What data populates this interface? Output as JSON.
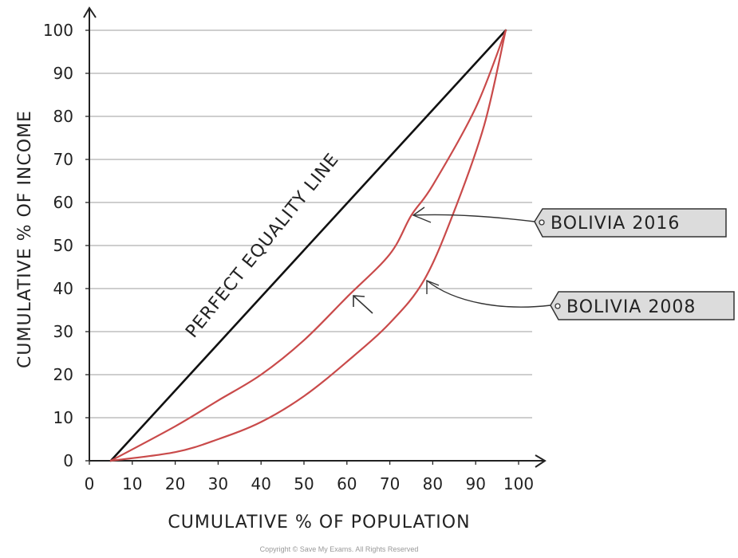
{
  "chart_data": {
    "type": "line",
    "xlabel": "CUMULATIVE % OF POPULATION",
    "ylabel": "CUMULATIVE % OF INCOME",
    "xlim": [
      0,
      100
    ],
    "ylim": [
      0,
      100
    ],
    "x_ticks": [
      0,
      10,
      20,
      30,
      40,
      50,
      60,
      70,
      80,
      90,
      100
    ],
    "y_ticks": [
      0,
      10,
      20,
      30,
      40,
      50,
      60,
      70,
      80,
      90,
      100
    ],
    "grid": "horizontal",
    "series": [
      {
        "name": "PERFECT EQUALITY LINE",
        "color": "#111111",
        "points": [
          [
            5,
            0
          ],
          [
            97,
            100
          ]
        ]
      },
      {
        "name": "BOLIVIA 2016",
        "color": "#c94a4a",
        "points": [
          [
            5,
            0
          ],
          [
            20,
            8
          ],
          [
            30,
            14
          ],
          [
            40,
            20
          ],
          [
            50,
            28
          ],
          [
            60,
            38
          ],
          [
            70,
            48
          ],
          [
            75,
            57
          ],
          [
            80,
            64
          ],
          [
            90,
            82
          ],
          [
            97,
            100
          ]
        ]
      },
      {
        "name": "BOLIVIA 2008",
        "color": "#c94a4a",
        "points": [
          [
            5,
            0
          ],
          [
            20,
            2
          ],
          [
            30,
            5
          ],
          [
            40,
            9
          ],
          [
            50,
            15
          ],
          [
            60,
            23
          ],
          [
            70,
            32
          ],
          [
            78,
            42
          ],
          [
            85,
            58
          ],
          [
            92,
            78
          ],
          [
            97,
            100
          ]
        ]
      }
    ],
    "annotations": {
      "equality_label": "PERFECT EQUALITY LINE",
      "tag_2016": "BOLIVIA 2016",
      "tag_2008": "BOLIVIA 2008"
    },
    "copyright": "Copyright © Save My Exams. All Rights Reserved"
  }
}
